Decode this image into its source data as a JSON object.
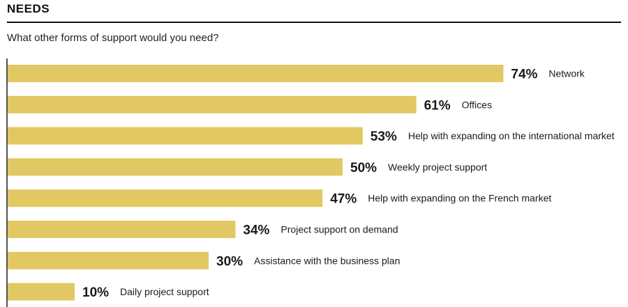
{
  "header": {
    "title": "NEEDS",
    "subtitle": "What other forms of support would you need?"
  },
  "colors": {
    "bar": "#E2C862",
    "axis": "#1a1a1a"
  },
  "chart_data": {
    "type": "bar",
    "orientation": "horizontal",
    "title": "",
    "xlabel": "",
    "ylabel": "",
    "xlim": [
      0,
      100
    ],
    "grid": false,
    "legend": "none",
    "categories": [
      "Network",
      "Offices",
      "Help with expanding on the international market",
      "Weekly project support",
      "Help with expanding on the French market",
      "Project support on demand",
      "Assistance with the business plan",
      "Daily project support"
    ],
    "values": [
      74,
      61,
      53,
      50,
      47,
      34,
      30,
      10
    ],
    "value_labels": [
      "74%",
      "61%",
      "53%",
      "50%",
      "47%",
      "34%",
      "30%",
      "10%"
    ]
  }
}
